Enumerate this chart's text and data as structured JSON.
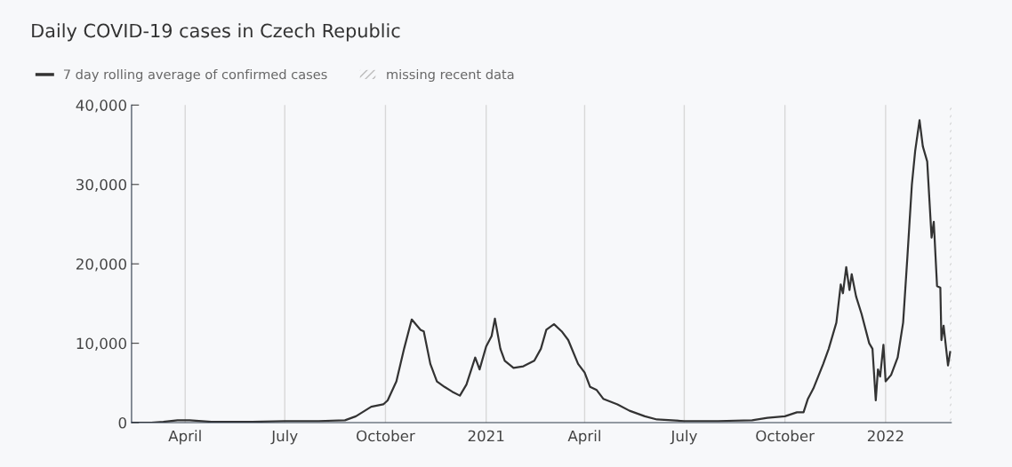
{
  "chart_data": {
    "type": "line",
    "title": "Daily COVID-19 cases in Czech Republic",
    "x": [
      "2020-02-12",
      "2020-03-01",
      "2020-03-12",
      "2020-03-25",
      "2020-04-05",
      "2020-04-25",
      "2020-06-01",
      "2020-07-01",
      "2020-08-01",
      "2020-08-25",
      "2020-09-04",
      "2020-09-18",
      "2020-09-29",
      "2020-10-03",
      "2020-10-11",
      "2020-10-18",
      "2020-10-25",
      "2020-11-02",
      "2020-11-05",
      "2020-11-11",
      "2020-11-17",
      "2020-11-24",
      "2020-12-01",
      "2020-12-08",
      "2020-12-14",
      "2020-12-22",
      "2020-12-26",
      "2021-01-01",
      "2021-01-06",
      "2021-01-09",
      "2021-01-14",
      "2021-01-18",
      "2021-01-26",
      "2021-02-04",
      "2021-02-14",
      "2021-02-20",
      "2021-02-25",
      "2021-03-04",
      "2021-03-11",
      "2021-03-17",
      "2021-03-26",
      "2021-04-01",
      "2021-04-06",
      "2021-04-12",
      "2021-04-18",
      "2021-05-01",
      "2021-05-12",
      "2021-05-26",
      "2021-06-06",
      "2021-07-01",
      "2021-08-01",
      "2021-09-01",
      "2021-09-15",
      "2021-10-01",
      "2021-10-12",
      "2021-10-18",
      "2021-10-22",
      "2021-10-27",
      "2021-11-05",
      "2021-11-10",
      "2021-11-17",
      "2021-11-21",
      "2021-11-23",
      "2021-11-26",
      "2021-11-29",
      "2021-12-01",
      "2021-12-05",
      "2021-12-10",
      "2021-12-17",
      "2021-12-20",
      "2021-12-23",
      "2021-12-25",
      "2021-12-27",
      "2021-12-30",
      "2022-01-01",
      "2022-01-06",
      "2022-01-12",
      "2022-01-17",
      "2022-01-21",
      "2022-01-25",
      "2022-01-28",
      "2022-02-01",
      "2022-02-04",
      "2022-02-08",
      "2022-02-12",
      "2022-02-14",
      "2022-02-17",
      "2022-02-20",
      "2022-02-21",
      "2022-02-23",
      "2022-02-27",
      "2022-03-01"
    ],
    "series": [
      {
        "name": "7 day rolling average of confirmed cases",
        "color": "#333333",
        "values": [
          0,
          0,
          100,
          300,
          300,
          100,
          100,
          200,
          200,
          300,
          800,
          2000,
          2300,
          2800,
          5200,
          9300,
          13000,
          11700,
          11500,
          7400,
          5200,
          4500,
          3900,
          3400,
          4800,
          8200,
          6700,
          9600,
          10900,
          13100,
          9300,
          7800,
          6900,
          7100,
          7800,
          9300,
          11700,
          12400,
          11500,
          10400,
          7400,
          6300,
          4500,
          4100,
          3000,
          2300,
          1500,
          800,
          400,
          200,
          200,
          300,
          600,
          800,
          1300,
          1300,
          3000,
          4300,
          7400,
          9300,
          12600,
          17400,
          16300,
          19600,
          16700,
          18700,
          15900,
          13700,
          10000,
          9300,
          2800,
          6700,
          5800,
          9800,
          5200,
          6000,
          8200,
          12600,
          21100,
          30000,
          34200,
          38100,
          34800,
          32900,
          23300,
          25300,
          17200,
          17000,
          10400,
          12200,
          7200,
          8900
        ]
      }
    ],
    "xlim": [
      "2020-02-12",
      "2022-03-02"
    ],
    "xticks": [
      {
        "value": "2020-04-01",
        "label": "April"
      },
      {
        "value": "2020-07-01",
        "label": "July"
      },
      {
        "value": "2020-10-01",
        "label": "October"
      },
      {
        "value": "2021-01-01",
        "label": "2021"
      },
      {
        "value": "2021-04-01",
        "label": "April"
      },
      {
        "value": "2021-07-01",
        "label": "July"
      },
      {
        "value": "2021-10-01",
        "label": "October"
      },
      {
        "value": "2022-01-01",
        "label": "2022"
      }
    ],
    "ylim": [
      0,
      40000
    ],
    "yticks": [
      0,
      {
        "value": 10000,
        "label": "10,000"
      },
      {
        "value": 20000,
        "label": "20,000"
      },
      {
        "value": 30000,
        "label": "30,000"
      },
      {
        "value": 40000,
        "label": "40,000"
      }
    ],
    "grid": "x",
    "legend": "top left",
    "bands": [
      {
        "axis": "x",
        "from": "2022-03-01",
        "to": "2022-03-02",
        "label": "missing recent data",
        "color": "#bbbbbb"
      }
    ]
  }
}
